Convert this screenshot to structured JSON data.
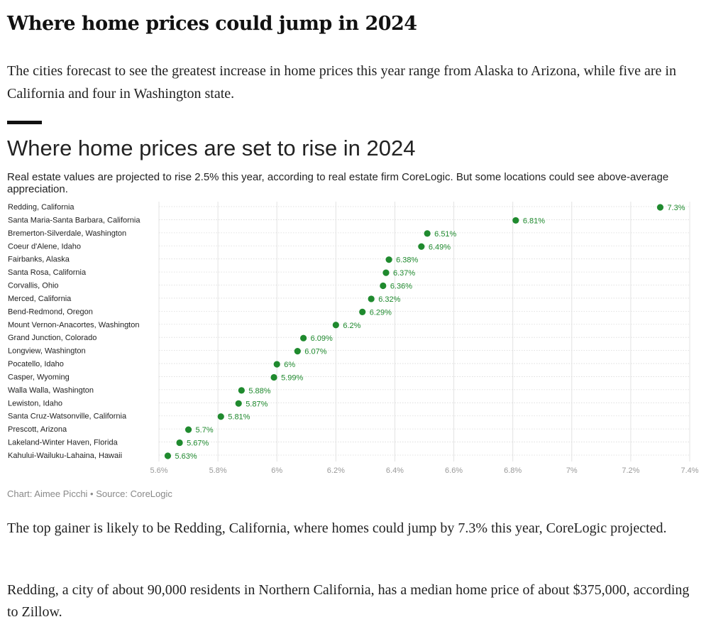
{
  "article": {
    "headline": "Where home prices could jump in 2024",
    "intro": "The cities forecast to see the greatest increase in home prices this year range from Alaska to Arizona, while five are in California and four in Washington state.",
    "paragraphs": [
      "The top gainer is likely to be Redding, California, where homes could jump by 7.3% this year, CoreLogic projected.",
      "Redding, a city of about 90,000 residents in Northern California, has a median home price of about $375,000, according to Zillow."
    ]
  },
  "chart": {
    "credit": "Chart: Aimee Picchi • Source: CoreLogic"
  },
  "chart_data": {
    "type": "scatter",
    "title": "Where home prices are set to rise in 2024",
    "subtitle": "Real estate values are projected to rise 2.5% this year, according to real estate firm CoreLogic. But some locations could see above-average appreciation.",
    "categories": [
      "Redding, California",
      "Santa Maria-Santa Barbara, California",
      "Bremerton-Silverdale, Washington",
      "Coeur d'Alene, Idaho",
      "Fairbanks, Alaska",
      "Santa Rosa, California",
      "Corvallis, Ohio",
      "Merced, California",
      "Bend-Redmond, Oregon",
      "Mount Vernon-Anacortes, Washington",
      "Grand Junction, Colorado",
      "Longview, Washington",
      "Pocatello, Idaho",
      "Casper, Wyoming",
      "Walla Walla, Washington",
      "Lewiston, Idaho",
      "Santa Cruz-Watsonville, California",
      "Prescott, Arizona",
      "Lakeland-Winter Haven, Florida",
      "Kahului-Wailuku-Lahaina, Hawaii"
    ],
    "values": [
      7.3,
      6.81,
      6.51,
      6.49,
      6.38,
      6.37,
      6.36,
      6.32,
      6.29,
      6.2,
      6.09,
      6.07,
      6.0,
      5.99,
      5.88,
      5.87,
      5.81,
      5.7,
      5.67,
      5.63
    ],
    "value_labels": [
      "7.3%",
      "6.81%",
      "6.51%",
      "6.49%",
      "6.38%",
      "6.37%",
      "6.36%",
      "6.32%",
      "6.29%",
      "6.2%",
      "6.09%",
      "6.07%",
      "6%",
      "5.99%",
      "5.88%",
      "5.87%",
      "5.81%",
      "5.7%",
      "5.67%",
      "5.63%"
    ],
    "xlim": [
      5.6,
      7.4
    ],
    "xticks": [
      5.6,
      5.8,
      6.0,
      6.2,
      6.4,
      6.6,
      6.8,
      7.0,
      7.2,
      7.4
    ],
    "xtick_labels": [
      "5.6%",
      "5.8%",
      "6%",
      "6.2%",
      "6.4%",
      "6.6%",
      "6.8%",
      "7%",
      "7.2%",
      "7.4%"
    ],
    "grid": true,
    "dot_color": "#1f8a2e",
    "label_color": "#1f8a2e"
  }
}
